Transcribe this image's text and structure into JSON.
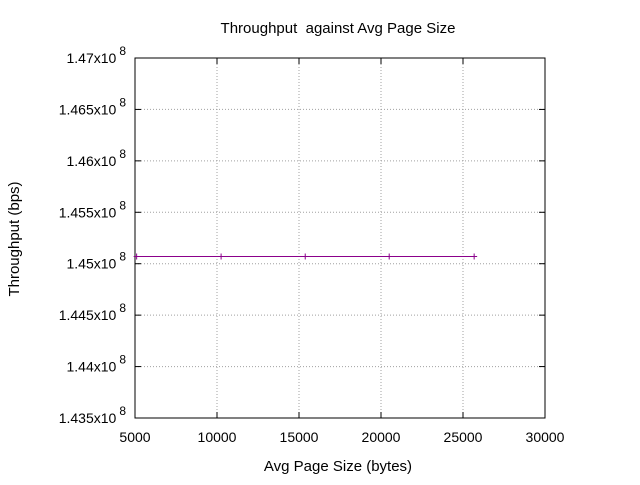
{
  "chart_data": {
    "type": "line",
    "title": "Throughput  against Avg Page Size",
    "xlabel": "Avg Page Size (bytes)",
    "ylabel": "Throughput (bps)",
    "xlim": [
      5000,
      30000
    ],
    "ylim": [
      143500000,
      147000000
    ],
    "xticks": [
      5000,
      10000,
      15000,
      20000,
      25000,
      30000
    ],
    "xtick_labels": [
      "5000",
      "10000",
      "15000",
      "20000",
      "25000",
      "30000"
    ],
    "yticks": [
      143500000,
      144000000,
      144500000,
      145000000,
      145500000,
      146000000,
      146500000,
      147000000
    ],
    "ytick_labels": [
      {
        "mantissa": "1.435x10",
        "exponent": "8"
      },
      {
        "mantissa": "1.44x10",
        "exponent": "8"
      },
      {
        "mantissa": "1.445x10",
        "exponent": "8"
      },
      {
        "mantissa": "1.45x10",
        "exponent": "8"
      },
      {
        "mantissa": "1.455x10",
        "exponent": "8"
      },
      {
        "mantissa": "1.46x10",
        "exponent": "8"
      },
      {
        "mantissa": "1.465x10",
        "exponent": "8"
      },
      {
        "mantissa": "1.47x10",
        "exponent": "8"
      }
    ],
    "grid": true,
    "series": [
      {
        "color": "#8b008b",
        "marker": "plus",
        "x": [
          5100,
          10250,
          15380,
          20500,
          25680
        ],
        "y": [
          145070000,
          145070000,
          145070000,
          145070000,
          145070000
        ]
      }
    ]
  }
}
